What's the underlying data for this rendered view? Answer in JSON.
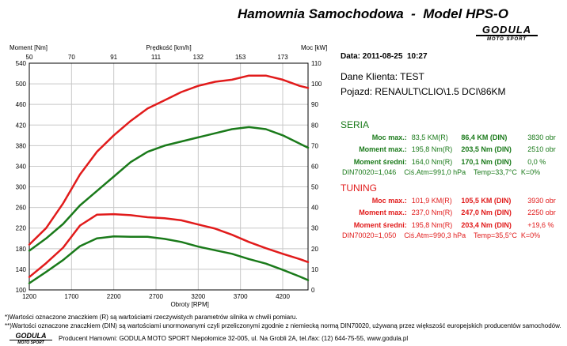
{
  "header": {
    "title": "Hamownia Samochodowa  -  Model HPS-O",
    "logo_main": "GODULA",
    "logo_sub": "MOTO SPORT"
  },
  "info": {
    "date": "Data: 2011-08-25  10:27",
    "client": "Dane Klienta: TEST",
    "vehicle": "Pojazd: RENAULT\\CLIO\\1.5 DCI\\86KM"
  },
  "seria": {
    "heading": "SERIA",
    "rows": [
      {
        "label": "Moc max.:",
        "r": "83,5 KM(R)",
        "d": "86,4 KM (DIN)",
        "rpm": "3830 obr"
      },
      {
        "label": "Moment max.:",
        "r": "195,8 Nm(R)",
        "d": "203,5 Nm (DIN)",
        "rpm": "2510 obr"
      },
      {
        "label": "Moment średni:",
        "r": "164,0 Nm(R)",
        "d": "170,1 Nm (DIN)",
        "rpm": "0,0 %"
      }
    ],
    "conditions": "DIN70020=1,046    Ciś.Atm=991,0 hPa    Temp=33,7°C  K=0%"
  },
  "tuning": {
    "heading": "TUNING",
    "rows": [
      {
        "label": "Moc max.:",
        "r": "101,9 KM(R)",
        "d": "105,5 KM (DIN)",
        "rpm": "3930 obr"
      },
      {
        "label": "Moment max.:",
        "r": "237,0 Nm(R)",
        "d": "247,0 Nm (DIN)",
        "rpm": "2250 obr"
      },
      {
        "label": "Moment średni:",
        "r": "195,8 Nm(R)",
        "d": "203,4 Nm (DIN)",
        "rpm": "+19,6 %"
      }
    ],
    "conditions": "DIN70020=1,050    Ciś.Atm=990,3 hPa    Temp=35,5°C  K=0%"
  },
  "footer": {
    "note1": "*)Wartości oznaczone znaczkiem (R) są wartościami rzeczywistych parametrów silnika w chwili pomiaru.",
    "note2": "**)Wartości oznaczone znaczkiem (DIN) są wartościami unormowanymi czyli przeliczonymi zgodnie z niemiecką normą DIN70020, używaną przez większość europejskich producentów samochodów.",
    "logo_main": "GODULA",
    "logo_sub": "MOTO SPORT",
    "producer": "Producent Hamowni: GODULA MOTO SPORT Niepołomice 32-005, ul. Na Grobli 2A, tel./fax: (12) 644-75-55, www.godula.pl"
  },
  "colors": {
    "seria": "#1a7a1a",
    "tuning": "#e11b1b",
    "grid": "#c8c8c8"
  },
  "chart_data": {
    "type": "line",
    "xlabel": "Obroty [RPM]",
    "x2label": "Prędkość [km/h]",
    "ylabel": "Moment [Nm]",
    "y2label": "Moc [kW]",
    "xlim": [
      1200,
      4500
    ],
    "ylim": [
      100,
      540
    ],
    "y2lim": [
      0,
      110
    ],
    "xticks": [
      1200,
      1700,
      2200,
      2700,
      3200,
      3700,
      4200
    ],
    "yticks": [
      100,
      140,
      180,
      220,
      260,
      300,
      340,
      380,
      420,
      460,
      500,
      540
    ],
    "y2ticks": [
      0,
      10,
      20,
      30,
      40,
      50,
      60,
      70,
      80,
      90,
      100,
      110
    ],
    "x2ticks": [
      {
        "rpm": 1200,
        "label": "50"
      },
      {
        "rpm": 1700,
        "label": "70"
      },
      {
        "rpm": 2200,
        "label": "91"
      },
      {
        "rpm": 2700,
        "label": "111"
      },
      {
        "rpm": 3200,
        "label": "132"
      },
      {
        "rpm": 3700,
        "label": "153"
      },
      {
        "rpm": 4200,
        "label": "173"
      }
    ],
    "x": [
      1200,
      1400,
      1600,
      1800,
      2000,
      2200,
      2400,
      2600,
      2800,
      3000,
      3200,
      3400,
      3600,
      3800,
      4000,
      4200,
      4400,
      4500
    ],
    "series": [
      {
        "name": "SERIA",
        "quantity": "torque",
        "axis": "left",
        "values": [
          113,
          135,
          158,
          185,
          200,
          204,
          203,
          203,
          199,
          193,
          184,
          177,
          170,
          160,
          151,
          139,
          126,
          119
        ]
      },
      {
        "name": "TUNING",
        "quantity": "torque",
        "axis": "left",
        "values": [
          125,
          152,
          182,
          225,
          246,
          247,
          245,
          241,
          239,
          235,
          227,
          219,
          207,
          193,
          181,
          170,
          160,
          154
        ]
      },
      {
        "name": "SERIA",
        "quantity": "power",
        "axis": "right",
        "values": [
          19,
          25,
          32,
          41,
          48,
          55,
          62,
          67,
          70,
          72,
          74,
          76,
          78,
          79,
          78,
          75,
          71,
          69
        ]
      },
      {
        "name": "TUNING",
        "quantity": "power",
        "axis": "right",
        "values": [
          22,
          30,
          42,
          56,
          67,
          75,
          82,
          88,
          92,
          96,
          99,
          101,
          102,
          104,
          104,
          102,
          99,
          98
        ]
      }
    ]
  }
}
